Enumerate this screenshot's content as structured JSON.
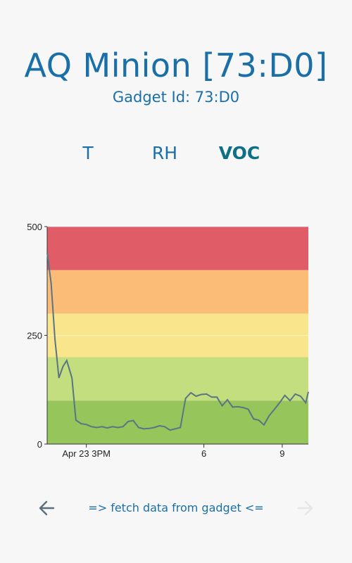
{
  "header": {
    "title": "AQ Minion [73:D0]",
    "subtitle": "Gadget Id: 73:D0"
  },
  "tabs": [
    {
      "label": "T",
      "active": false
    },
    {
      "label": "RH",
      "active": false
    },
    {
      "label": "VOC",
      "active": true
    }
  ],
  "footer": {
    "fetch_label": "=> fetch data from gadget <=",
    "back_icon": "arrow-left-icon",
    "forward_icon": "arrow-right-icon",
    "forward_enabled": false
  },
  "chart_data": {
    "type": "line",
    "ylim": [
      0,
      500
    ],
    "y_ticks": [
      0,
      250,
      500
    ],
    "x_ticks": [
      {
        "x": 1.5,
        "label": "Apr 23 3PM"
      },
      {
        "x": 6,
        "label": "6"
      },
      {
        "x": 9,
        "label": "9"
      }
    ],
    "xlim": [
      0,
      10
    ],
    "bands": [
      {
        "from": 0,
        "to": 100,
        "color": "#96c65b"
      },
      {
        "from": 100,
        "to": 200,
        "color": "#c2de7e"
      },
      {
        "from": 200,
        "to": 300,
        "color": "#f9e58b"
      },
      {
        "from": 300,
        "to": 400,
        "color": "#fbbc78"
      },
      {
        "from": 400,
        "to": 500,
        "color": "#e05c66"
      }
    ],
    "series": [
      {
        "color": "#5a7484",
        "x": [
          0,
          0.15,
          0.3,
          0.45,
          0.6,
          0.75,
          0.95,
          1.1,
          1.3,
          1.5,
          1.7,
          1.9,
          2.1,
          2.3,
          2.5,
          2.7,
          2.9,
          3.1,
          3.3,
          3.5,
          3.7,
          3.9,
          4.1,
          4.3,
          4.5,
          4.7,
          4.9,
          5.1,
          5.3,
          5.5,
          5.7,
          5.9,
          6.1,
          6.3,
          6.5,
          6.7,
          6.9,
          7.1,
          7.3,
          7.5,
          7.7,
          7.9,
          8.1,
          8.3,
          8.5,
          8.7,
          8.9,
          9.1,
          9.3,
          9.5,
          9.7,
          9.9,
          10
        ],
        "y": [
          440,
          370,
          240,
          152,
          178,
          192,
          152,
          55,
          47,
          45,
          40,
          38,
          40,
          37,
          40,
          38,
          40,
          52,
          54,
          38,
          35,
          36,
          38,
          42,
          40,
          32,
          35,
          38,
          105,
          118,
          110,
          114,
          115,
          108,
          108,
          88,
          102,
          85,
          86,
          84,
          80,
          58,
          55,
          44,
          65,
          80,
          95,
          112,
          100,
          115,
          110,
          95,
          120
        ]
      }
    ]
  }
}
